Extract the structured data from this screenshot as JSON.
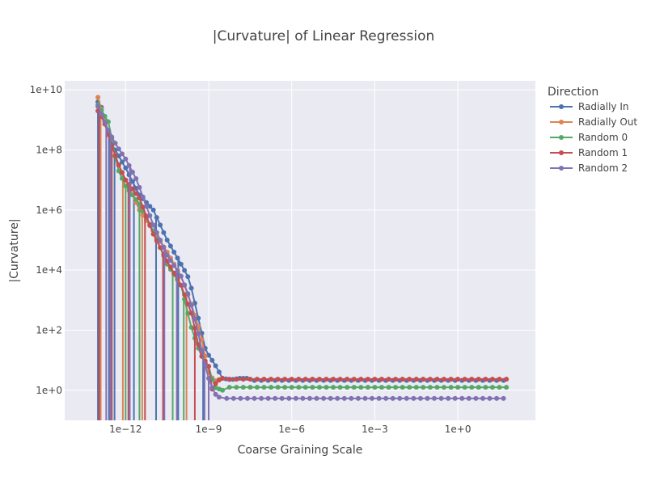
{
  "chart_data": {
    "type": "line",
    "title": "|Curvature| of Linear Regression",
    "xlabel": "Coarse Graining Scale",
    "ylabel": "|Curvature|",
    "x_scale": "log",
    "y_scale": "log",
    "xlim_log10": [
      -14.2,
      2.8
    ],
    "ylim_log10": [
      -1.0,
      10.3
    ],
    "x_ticks": [
      {
        "log10": -12,
        "label": "1e−12"
      },
      {
        "log10": -9,
        "label": "1e−9"
      },
      {
        "log10": -6,
        "label": "1e−6"
      },
      {
        "log10": -3,
        "label": "1e−3"
      },
      {
        "log10": 0,
        "label": "1e+0"
      }
    ],
    "y_ticks": [
      {
        "log10": 0,
        "label": "1e+0"
      },
      {
        "log10": 2,
        "label": "1e+2"
      },
      {
        "log10": 4,
        "label": "1e+4"
      },
      {
        "log10": 6,
        "label": "1e+6"
      },
      {
        "log10": 8,
        "label": "1e+8"
      },
      {
        "log10": 10,
        "label": "1e+10"
      }
    ],
    "grid": true,
    "legend": {
      "title": "Direction",
      "placement": "right"
    },
    "x_log10_start": -13.0,
    "x_log10_step": 0.25,
    "plateau_end_log10": 1.75,
    "series": [
      {
        "name": "Radially In",
        "color": "#4c72b0",
        "curve": [
          [
            -13.0,
            9.6
          ],
          [
            -12.9,
            9.5
          ],
          [
            -12.5,
            8.2
          ],
          [
            -12.0,
            7.4
          ],
          [
            -11.5,
            6.5
          ],
          [
            -11.0,
            6.0
          ],
          [
            -10.5,
            5.0
          ],
          [
            -10.0,
            4.2
          ],
          [
            -9.7,
            3.7
          ],
          [
            -9.4,
            2.5
          ],
          [
            -9.1,
            1.3
          ],
          [
            -8.8,
            0.9
          ],
          [
            -8.5,
            0.4
          ],
          [
            -8.2,
            0.35
          ],
          [
            -7.9,
            0.4
          ],
          [
            -7.6,
            0.4
          ]
        ],
        "plateau": 0.33,
        "drops": [
          -13.0,
          -12.6,
          -12.4,
          -11.7,
          -10.9,
          -10.1,
          -9.2
        ]
      },
      {
        "name": "Radially Out",
        "color": "#dd8452",
        "curve": [
          [
            -13.0,
            9.75
          ],
          [
            -12.6,
            8.5
          ],
          [
            -12.3,
            7.6
          ],
          [
            -12.0,
            7.0
          ],
          [
            -11.5,
            6.0
          ],
          [
            -11.0,
            5.3
          ],
          [
            -10.5,
            4.6
          ],
          [
            -10.0,
            3.8
          ],
          [
            -9.6,
            2.8
          ],
          [
            -9.3,
            1.9
          ],
          [
            -9.0,
            0.6
          ],
          [
            -8.8,
            0.3
          ],
          [
            -8.5,
            0.4
          ]
        ],
        "plateau": 0.37,
        "drops": [
          -12.9,
          -12.1,
          -11.4,
          -9.8
        ]
      },
      {
        "name": "Random 0",
        "color": "#55a868",
        "curve": [
          [
            -13.0,
            9.5
          ],
          [
            -12.6,
            8.9
          ],
          [
            -12.3,
            7.4
          ],
          [
            -12.0,
            6.8
          ],
          [
            -11.5,
            6.2
          ],
          [
            -11.0,
            5.3
          ],
          [
            -10.5,
            4.2
          ],
          [
            -10.0,
            3.5
          ],
          [
            -9.6,
            2.0
          ],
          [
            -9.3,
            1.2
          ],
          [
            -9.0,
            0.8
          ],
          [
            -8.8,
            0.1
          ],
          [
            -8.5,
            0.0
          ]
        ],
        "plateau": 0.1,
        "drops": [
          -12.5,
          -12.0,
          -11.5,
          -10.3,
          -9.9
        ]
      },
      {
        "name": "Random 1",
        "color": "#c44e52",
        "curve": [
          [
            -13.0,
            9.3
          ],
          [
            -12.8,
            9.0
          ],
          [
            -12.3,
            7.6
          ],
          [
            -12.0,
            7.0
          ],
          [
            -11.5,
            6.4
          ],
          [
            -11.0,
            5.2
          ],
          [
            -10.5,
            4.3
          ],
          [
            -10.0,
            3.5
          ],
          [
            -9.6,
            2.5
          ],
          [
            -9.3,
            1.2
          ],
          [
            -9.0,
            0.8
          ],
          [
            -8.9,
            0.0
          ],
          [
            -8.7,
            0.3
          ],
          [
            -8.5,
            0.4
          ]
        ],
        "plateau": 0.37,
        "drops": [
          -12.95,
          -12.5,
          -11.9,
          -11.3,
          -10.65,
          -9.5
        ]
      },
      {
        "name": "Random 2",
        "color": "#8172b3",
        "curve": [
          [
            -13.0,
            9.45
          ],
          [
            -12.6,
            8.6
          ],
          [
            -12.3,
            8.1
          ],
          [
            -12.0,
            7.7
          ],
          [
            -11.6,
            7.0
          ],
          [
            -11.0,
            5.5
          ],
          [
            -10.5,
            4.5
          ],
          [
            -10.0,
            3.8
          ],
          [
            -9.7,
            3.1
          ],
          [
            -9.4,
            2.0
          ],
          [
            -9.2,
            1.1
          ],
          [
            -9.0,
            0.4
          ],
          [
            -8.8,
            -0.1
          ],
          [
            -8.6,
            -0.25
          ]
        ],
        "plateau": -0.27,
        "drops": [
          -12.7,
          -12.55,
          -11.85,
          -10.6,
          -10.15,
          -9.15,
          -9.0
        ]
      }
    ]
  }
}
